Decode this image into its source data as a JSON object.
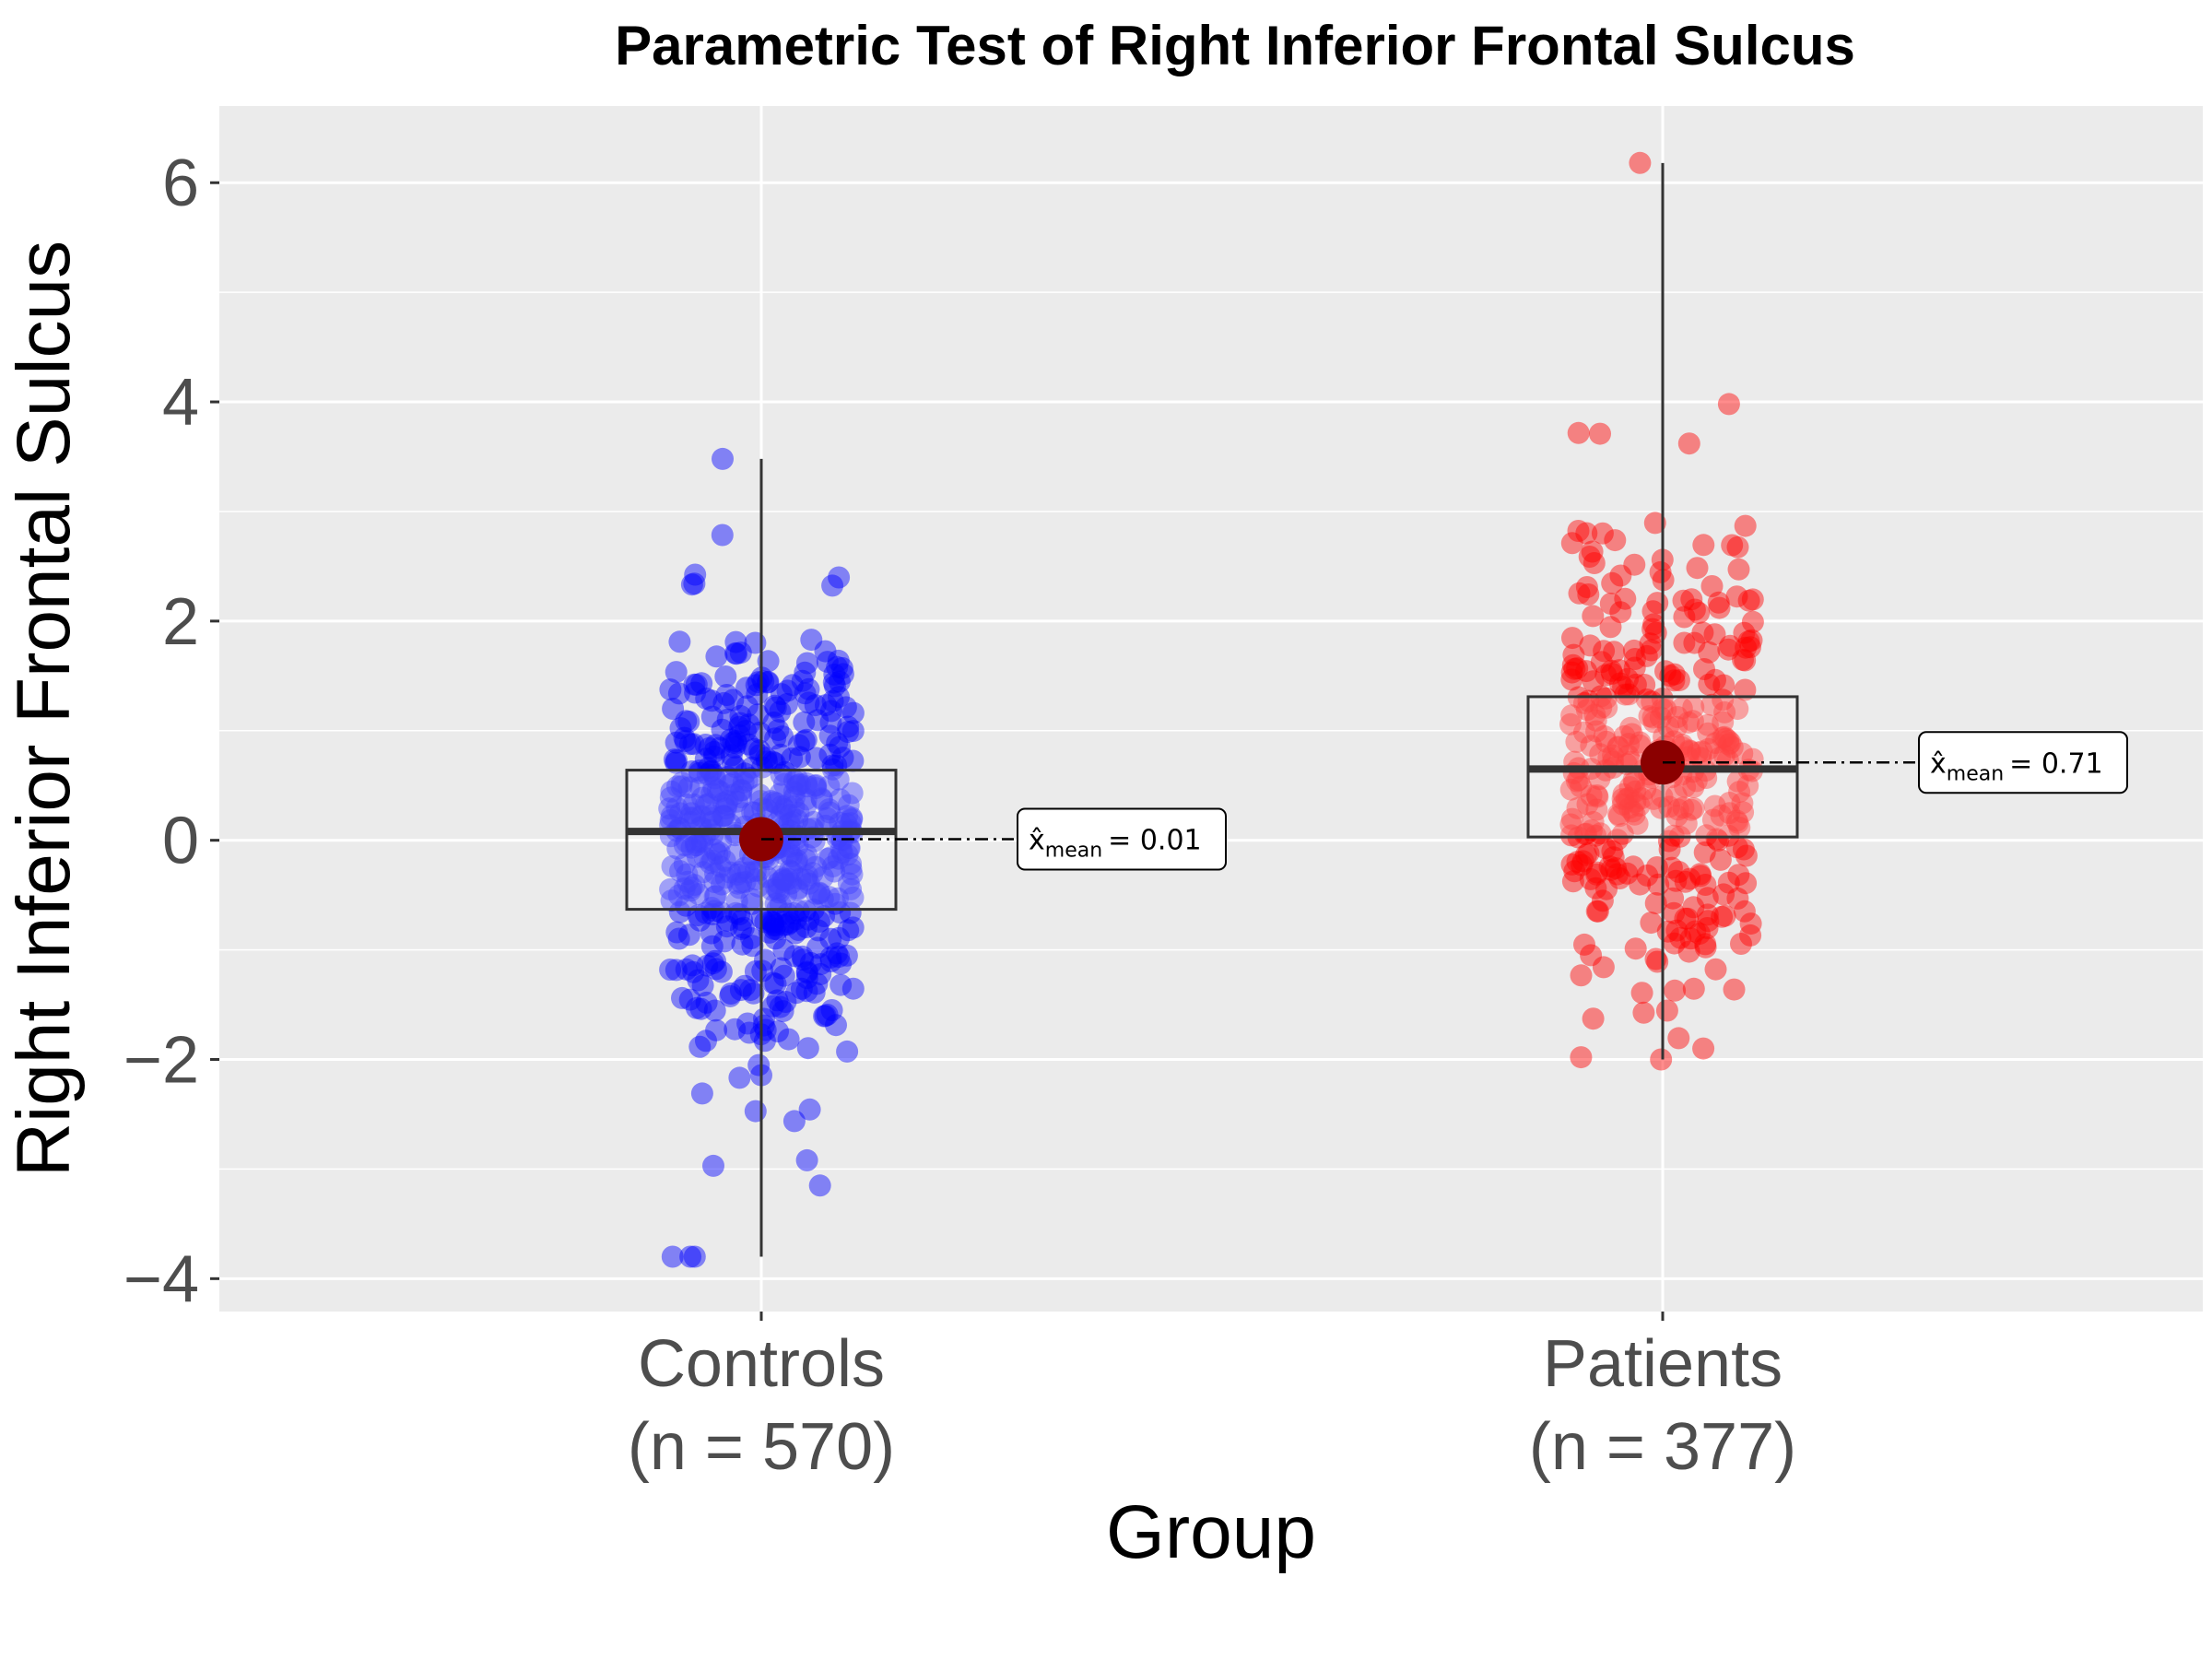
{
  "chart_data": {
    "type": "box",
    "title": "Parametric Test of Right Inferior Frontal Sulcus",
    "xlabel": "Group",
    "ylabel": "Right Inferior Frontal Sulcus",
    "ylim": [
      -4.3,
      6.7
    ],
    "yticks": [
      -4,
      -2,
      0,
      2,
      4,
      6
    ],
    "ytick_labels": [
      "−4",
      "−2",
      "0",
      "2",
      "4",
      "6"
    ],
    "grid": true,
    "colors": {
      "panel_bg": "#ebebeb",
      "grid": "#ffffff",
      "Controls": "#0000ff",
      "Patients": "#ff0000",
      "mean_point": "#8b0000",
      "box_line": "#333333"
    },
    "groups": [
      {
        "name": "Controls",
        "n_label": "(n = 570)",
        "n": 570,
        "q1": -0.63,
        "median": 0.08,
        "q3": 0.64,
        "whisker_low": -3.8,
        "whisker_high": 3.48,
        "mean": 0.01,
        "mean_label_main": "x̂",
        "mean_label_sub": "mean",
        "mean_label_value": "= 0.01",
        "outliers": [
          -3.8,
          -3.15,
          -2.97,
          -2.92,
          3.48
        ],
        "spread": 1.0
      },
      {
        "name": "Patients",
        "n_label": "(n = 377)",
        "n": 377,
        "q1": 0.03,
        "median": 0.65,
        "q3": 1.31,
        "whisker_low": -2.0,
        "whisker_high": 6.18,
        "mean": 0.71,
        "mean_label_main": "x̂",
        "mean_label_sub": "mean",
        "mean_label_value": "= 0.71",
        "outliers": [
          6.18,
          3.98,
          3.62,
          -1.98,
          -1.9
        ],
        "spread": 1.0
      }
    ]
  }
}
